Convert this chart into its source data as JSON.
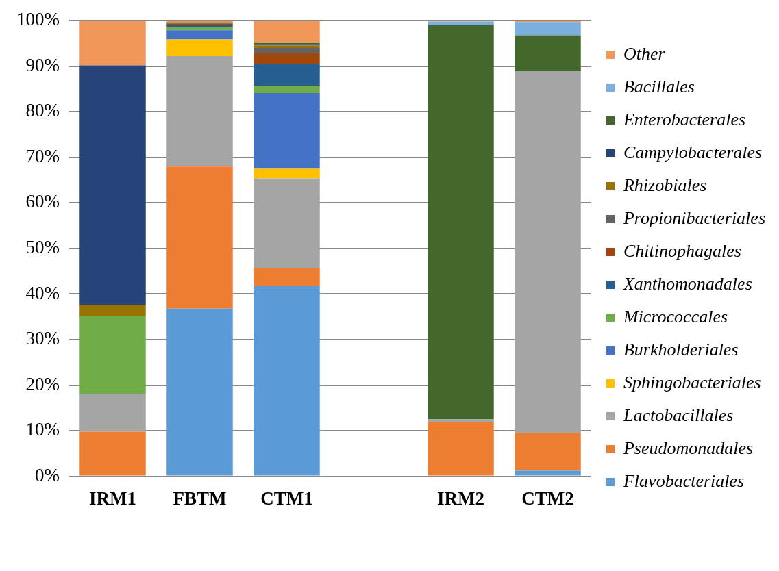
{
  "chart_data": {
    "type": "bar",
    "stacked": true,
    "grid": "y",
    "legend": "right",
    "categories": [
      "IRM1",
      "FBTM",
      "CTM1",
      null,
      "IRM2",
      "CTM2"
    ],
    "ylim": [
      0,
      100
    ],
    "yticks": [
      {
        "value": 0,
        "label": "0%"
      },
      {
        "value": 10,
        "label": "10%"
      },
      {
        "value": 20,
        "label": "20%"
      },
      {
        "value": 30,
        "label": "30%"
      },
      {
        "value": 40,
        "label": "40%"
      },
      {
        "value": 50,
        "label": "50%"
      },
      {
        "value": 60,
        "label": "60%"
      },
      {
        "value": 70,
        "label": "70%"
      },
      {
        "value": 80,
        "label": "80%"
      },
      {
        "value": 90,
        "label": "90%"
      },
      {
        "value": 100,
        "label": "100%"
      }
    ],
    "series": [
      {
        "name": "Flavobacteriales",
        "color": "#5b9bd5",
        "values": [
          0,
          36.8,
          41.8,
          null,
          0,
          1.2
        ]
      },
      {
        "name": "Pseudomonadales",
        "color": "#ed7d31",
        "values": [
          9.8,
          31.2,
          3.9,
          null,
          11.9,
          8.2
        ]
      },
      {
        "name": "Lactobacillales",
        "color": "#a5a5a5",
        "values": [
          8.2,
          24.2,
          19.7,
          null,
          0.6,
          79.6
        ]
      },
      {
        "name": "Sphingobacteriales",
        "color": "#ffc000",
        "values": [
          0,
          3.7,
          2.1,
          null,
          0,
          0
        ]
      },
      {
        "name": "Burkholderiales",
        "color": "#4472c4",
        "values": [
          0,
          2.0,
          16.6,
          null,
          0,
          0
        ]
      },
      {
        "name": "Micrococcales",
        "color": "#70ad47",
        "values": [
          17.2,
          0.7,
          1.6,
          null,
          0,
          0
        ]
      },
      {
        "name": "Xanthomonadales",
        "color": "#255e91",
        "values": [
          0,
          0.4,
          4.7,
          null,
          0,
          0
        ]
      },
      {
        "name": "Chitinophagales",
        "color": "#9e480e",
        "values": [
          0,
          0.4,
          2.5,
          null,
          0,
          0
        ]
      },
      {
        "name": "Propionibacteriales",
        "color": "#636363",
        "values": [
          0,
          0.2,
          1.1,
          null,
          0,
          0
        ]
      },
      {
        "name": "Rhizobiales",
        "color": "#997300",
        "values": [
          2.4,
          0.1,
          0.6,
          null,
          0,
          0
        ]
      },
      {
        "name": "Campylobacterales",
        "color": "#264478",
        "values": [
          52.6,
          0,
          0.3,
          null,
          0,
          0
        ]
      },
      {
        "name": "Enterobacterales",
        "color": "#43682b",
        "values": [
          0,
          0,
          0.2,
          null,
          86.6,
          7.8
        ]
      },
      {
        "name": "Bacillales",
        "color": "#7cafdd",
        "values": [
          0,
          0,
          0,
          null,
          0.7,
          2.9
        ]
      },
      {
        "name": "Other",
        "color": "#f1975a",
        "values": [
          9.8,
          0.3,
          4.9,
          null,
          0.2,
          0.3
        ]
      }
    ]
  }
}
